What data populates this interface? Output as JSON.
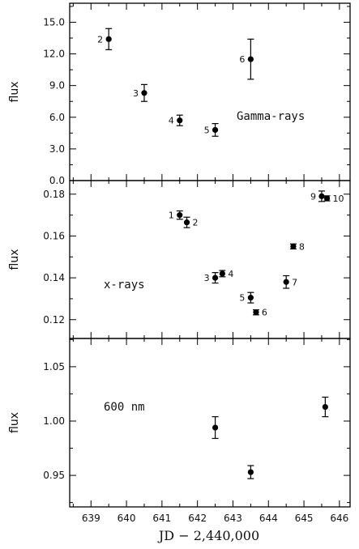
{
  "chart_data": {
    "type": "scatter",
    "xlabel": "JD − 2,440,000",
    "xlim": [
      638.4,
      646.3
    ],
    "xticks": [
      "639",
      "640",
      "641",
      "642",
      "643",
      "644",
      "645",
      "646"
    ],
    "panels": [
      {
        "ylabel": "flux",
        "annotation": "Gamma-rays",
        "ylim": [
          0,
          16.8
        ],
        "yticks": [
          "0.0",
          "3.0",
          "6.0",
          "9.0",
          "12.0",
          "15.0"
        ],
        "points": [
          {
            "label": "2",
            "x": 639.5,
            "y": 13.4,
            "err": 1.0
          },
          {
            "label": "3",
            "x": 640.5,
            "y": 8.3,
            "err": 0.8
          },
          {
            "label": "4",
            "x": 641.5,
            "y": 5.7,
            "err": 0.5
          },
          {
            "label": "5",
            "x": 642.5,
            "y": 4.8,
            "err": 0.6
          },
          {
            "label": "6",
            "x": 643.5,
            "y": 11.5,
            "err": 1.9
          }
        ]
      },
      {
        "ylabel": "flux",
        "annotation": "x-rays",
        "ylim": [
          0.111,
          0.1865
        ],
        "yticks": [
          "0.12",
          "0.14",
          "0.16",
          "0.18"
        ],
        "points": [
          {
            "label": "1",
            "x": 641.5,
            "y": 0.17,
            "err": 0.002
          },
          {
            "label": "2",
            "x": 641.7,
            "y": 0.1665,
            "err": 0.0025
          },
          {
            "label": "3",
            "x": 642.5,
            "y": 0.14,
            "err": 0.0025
          },
          {
            "label": "4",
            "x": 642.7,
            "y": 0.142,
            "err": 0.0015
          },
          {
            "label": "5",
            "x": 643.5,
            "y": 0.1305,
            "err": 0.0025
          },
          {
            "label": "6",
            "x": 643.65,
            "y": 0.1235,
            "err": 0.0012
          },
          {
            "label": "7",
            "x": 644.5,
            "y": 0.138,
            "err": 0.003
          },
          {
            "label": "8",
            "x": 644.7,
            "y": 0.155,
            "err": 0.0012
          },
          {
            "label": "9",
            "x": 645.5,
            "y": 0.179,
            "err": 0.0025
          },
          {
            "label": "10",
            "x": 645.65,
            "y": 0.178,
            "err": 0.0012
          }
        ]
      },
      {
        "ylabel": "flux",
        "annotation": "600 nm",
        "ylim": [
          0.921,
          1.076
        ],
        "yticks": [
          "0.95",
          "1.00",
          "1.05"
        ],
        "points": [
          {
            "label": "",
            "x": 642.5,
            "y": 0.994,
            "err": 0.01
          },
          {
            "label": "",
            "x": 643.5,
            "y": 0.953,
            "err": 0.006
          },
          {
            "label": "",
            "x": 645.6,
            "y": 1.013,
            "err": 0.009
          }
        ]
      }
    ]
  }
}
